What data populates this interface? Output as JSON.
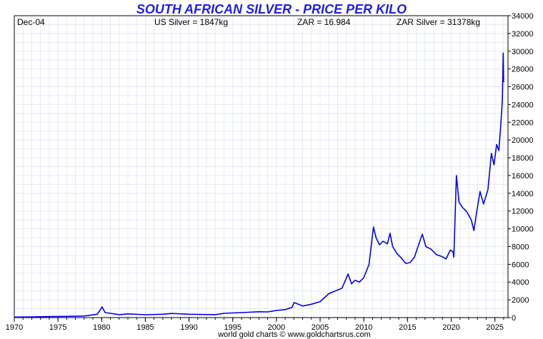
{
  "chart_data": {
    "type": "line",
    "title": "SOUTH AFRICAN SILVER - PRICE PER KILO",
    "footer": "world gold charts © www.goldchartsrus.com",
    "info": {
      "date": "Dec-04",
      "us_silver": "US Silver = 1847kg",
      "zar": "ZAR = 16.984",
      "zar_silver": "ZAR Silver = 31378kg"
    },
    "x_ticks": [
      "1970",
      "1975",
      "1980",
      "1985",
      "1990",
      "1995",
      "2000",
      "2005",
      "2010",
      "2015",
      "2020",
      "2025"
    ],
    "y_ticks": [
      "0",
      "2000",
      "4000",
      "6000",
      "8000",
      "10000",
      "12000",
      "14000",
      "16000",
      "18000",
      "20000",
      "22000",
      "24000",
      "26000",
      "28000",
      "30000",
      "32000",
      "34000"
    ],
    "xlim": [
      1970,
      2026.5
    ],
    "ylim": [
      0,
      34000
    ],
    "grid": true,
    "line_color": "#0000ee",
    "title_color": "#1f1fe0",
    "series": [
      {
        "values": [
          [
            1970.0,
            60
          ],
          [
            1972.0,
            70
          ],
          [
            1974.0,
            110
          ],
          [
            1976.0,
            140
          ],
          [
            1978.0,
            180
          ],
          [
            1979.5,
            380
          ],
          [
            1980.05,
            1200
          ],
          [
            1980.4,
            560
          ],
          [
            1981.0,
            480
          ],
          [
            1982.0,
            330
          ],
          [
            1983.0,
            420
          ],
          [
            1985.0,
            320
          ],
          [
            1987.0,
            380
          ],
          [
            1988.0,
            470
          ],
          [
            1990.0,
            380
          ],
          [
            1993.0,
            330
          ],
          [
            1994.0,
            480
          ],
          [
            1996.0,
            560
          ],
          [
            1998.0,
            660
          ],
          [
            1999.0,
            640
          ],
          [
            2000.0,
            800
          ],
          [
            2001.0,
            900
          ],
          [
            2001.8,
            1150
          ],
          [
            2002.0,
            1700
          ],
          [
            2002.5,
            1500
          ],
          [
            2003.0,
            1300
          ],
          [
            2004.0,
            1500
          ],
          [
            2005.0,
            1800
          ],
          [
            2006.0,
            2700
          ],
          [
            2007.0,
            3100
          ],
          [
            2007.5,
            3300
          ],
          [
            2008.2,
            4900
          ],
          [
            2008.6,
            3800
          ],
          [
            2009.0,
            4200
          ],
          [
            2009.5,
            4000
          ],
          [
            2010.0,
            4500
          ],
          [
            2010.6,
            6000
          ],
          [
            2011.1,
            10200
          ],
          [
            2011.4,
            9000
          ],
          [
            2011.8,
            8200
          ],
          [
            2012.2,
            8600
          ],
          [
            2012.7,
            8300
          ],
          [
            2013.0,
            9500
          ],
          [
            2013.3,
            8000
          ],
          [
            2013.8,
            7200
          ],
          [
            2014.3,
            6700
          ],
          [
            2014.8,
            6100
          ],
          [
            2015.3,
            6200
          ],
          [
            2015.8,
            6800
          ],
          [
            2016.3,
            8300
          ],
          [
            2016.7,
            9400
          ],
          [
            2017.1,
            8000
          ],
          [
            2017.7,
            7700
          ],
          [
            2018.3,
            7100
          ],
          [
            2018.9,
            6900
          ],
          [
            2019.4,
            6600
          ],
          [
            2019.9,
            7600
          ],
          [
            2020.2,
            7400
          ],
          [
            2020.3,
            6800
          ],
          [
            2020.6,
            16000
          ],
          [
            2020.9,
            13000
          ],
          [
            2021.3,
            12400
          ],
          [
            2021.8,
            11900
          ],
          [
            2022.3,
            11000
          ],
          [
            2022.6,
            9800
          ],
          [
            2022.9,
            11800
          ],
          [
            2023.3,
            14200
          ],
          [
            2023.7,
            12800
          ],
          [
            2024.2,
            14400
          ],
          [
            2024.6,
            18500
          ],
          [
            2024.9,
            17200
          ],
          [
            2025.2,
            19500
          ],
          [
            2025.45,
            18800
          ],
          [
            2025.7,
            22000
          ],
          [
            2025.85,
            24500
          ],
          [
            2025.95,
            29800
          ],
          [
            2026.0,
            26500
          ]
        ]
      }
    ]
  }
}
